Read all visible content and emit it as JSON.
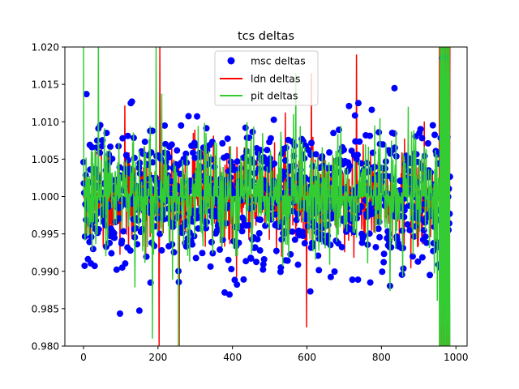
{
  "chart_data": {
    "type": "scatter",
    "title": "tcs deltas",
    "xlabel": "",
    "ylabel": "",
    "xlim": [
      -50,
      1030
    ],
    "ylim": [
      0.98,
      1.02
    ],
    "x_ticks": [
      0,
      200,
      400,
      600,
      800,
      1000
    ],
    "y_ticks": [
      0.98,
      0.985,
      0.99,
      0.995,
      1.0,
      1.005,
      1.01,
      1.015,
      1.02
    ],
    "x_tick_labels": [
      "0",
      "200",
      "400",
      "600",
      "800",
      "1000"
    ],
    "y_tick_labels": [
      "0.980",
      "0.985",
      "0.990",
      "0.995",
      "1.000",
      "1.005",
      "1.010",
      "1.015",
      "1.020"
    ],
    "grid": false,
    "legend_position": "top-center",
    "n_points": 985,
    "series": [
      {
        "name": "msc deltas",
        "style": "markers",
        "color": "#0000ff",
        "approx_mean": 1.0,
        "approx_std": 0.0045,
        "sample_points": [
          [
            0,
            1.0046
          ],
          [
            8,
            1.0137
          ],
          [
            40,
            1.0091
          ],
          [
            62,
            1.0085
          ],
          [
            130,
            1.0127
          ],
          [
            262,
            1.0095
          ],
          [
            210,
            0.9928
          ],
          [
            238,
            0.9936
          ],
          [
            430,
            0.9889
          ],
          [
            485,
            0.9916
          ],
          [
            530,
            0.9905
          ],
          [
            713,
            1.0121
          ],
          [
            738,
            1.0125
          ],
          [
            835,
            1.0145
          ],
          [
            770,
            0.9885
          ],
          [
            930,
            0.9895
          ],
          [
            957,
            0.9905
          ],
          [
            963,
            1.0185
          ],
          [
            972,
            1.0186
          ],
          [
            965,
            1.009
          ]
        ]
      },
      {
        "name": "ldn deltas",
        "style": "line",
        "color": "#ff0000",
        "approx_baseline": 1.0,
        "extremes": [
          [
            203,
            0.98
          ],
          [
            205,
            1.02
          ],
          [
            257,
            0.98
          ],
          [
            599,
            0.9825
          ],
          [
            612,
            1.0165
          ],
          [
            733,
            1.019
          ],
          [
            960,
            1.02
          ],
          [
            975,
            0.98
          ]
        ]
      },
      {
        "name": "pit deltas",
        "style": "line",
        "color": "#33cc33",
        "approx_baseline": 1.0,
        "extremes": [
          [
            0,
            1.02
          ],
          [
            40,
            1.02
          ],
          [
            185,
            0.981
          ],
          [
            195,
            1.0205
          ],
          [
            255,
            0.98
          ],
          [
            570,
            1.0165
          ],
          [
            958,
            0.98
          ],
          [
            965,
            1.02
          ]
        ]
      }
    ]
  }
}
